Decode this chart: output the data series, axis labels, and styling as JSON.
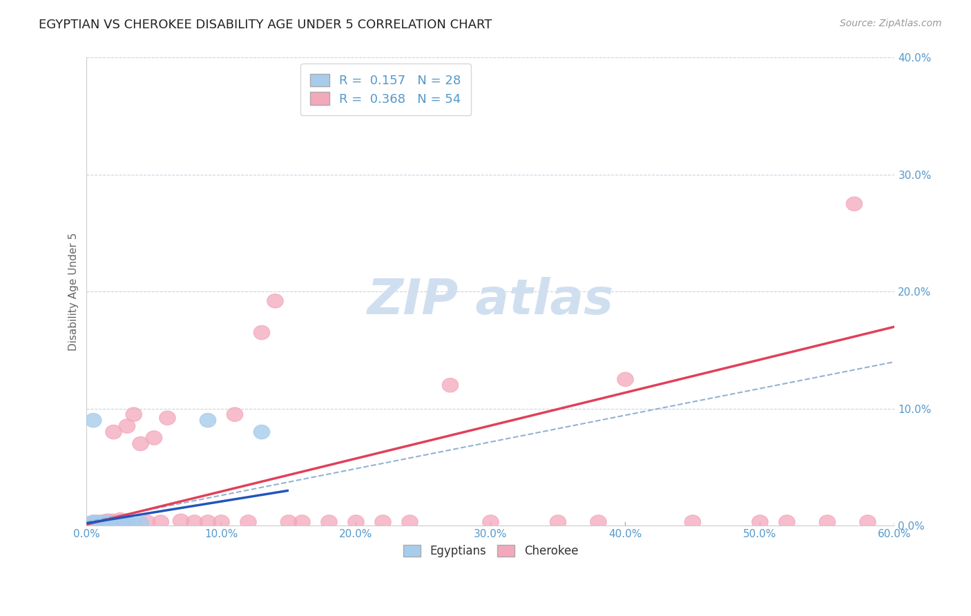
{
  "title": "EGYPTIAN VS CHEROKEE DISABILITY AGE UNDER 5 CORRELATION CHART",
  "source": "Source: ZipAtlas.com",
  "ylabel": "Disability Age Under 5",
  "xlim": [
    0,
    0.6
  ],
  "ylim": [
    0,
    0.4
  ],
  "xticks": [
    0.0,
    0.1,
    0.2,
    0.3,
    0.4,
    0.5,
    0.6
  ],
  "xtick_labels": [
    "0.0%",
    "10.0%",
    "20.0%",
    "30.0%",
    "40.0%",
    "50.0%",
    "60.0%"
  ],
  "yticks": [
    0.0,
    0.1,
    0.2,
    0.3,
    0.4
  ],
  "ytick_labels": [
    "0.0%",
    "10.0%",
    "20.0%",
    "30.0%",
    "40.0%"
  ],
  "legend_r1": "R =  0.157   N = 28",
  "legend_r2": "R =  0.368   N = 54",
  "egyptian_color": "#A8CCEC",
  "cherokee_color": "#F4A8BC",
  "egyptian_line_color": "#2255BB",
  "cherokee_line_color": "#E0405A",
  "dashed_line_color": "#88AACC",
  "background_color": "#FFFFFF",
  "grid_color": "#C8D4E0",
  "tick_label_color": "#5599CC",
  "watermark_color": "#D0DFF0",
  "cherokee_line_start_y": 0.001,
  "cherokee_line_end_y": 0.17,
  "dashed_line_start_y": 0.003,
  "dashed_line_end_y": 0.14,
  "egyptian_line_start_y": 0.002,
  "egyptian_line_end_y": 0.03,
  "egyptian_line_end_x": 0.15,
  "eg_x": [
    0.003,
    0.003,
    0.004,
    0.005,
    0.006,
    0.007,
    0.008,
    0.009,
    0.01,
    0.011,
    0.012,
    0.012,
    0.013,
    0.014,
    0.015,
    0.016,
    0.017,
    0.019,
    0.02,
    0.022,
    0.025,
    0.028,
    0.03,
    0.035,
    0.04,
    0.005,
    0.13,
    0.09
  ],
  "eg_y": [
    0.001,
    0.002,
    0.001,
    0.002,
    0.003,
    0.001,
    0.002,
    0.001,
    0.002,
    0.001,
    0.003,
    0.001,
    0.002,
    0.001,
    0.003,
    0.001,
    0.002,
    0.001,
    0.002,
    0.001,
    0.001,
    0.002,
    0.003,
    0.001,
    0.002,
    0.09,
    0.08,
    0.09
  ],
  "ch_x": [
    0.002,
    0.003,
    0.004,
    0.005,
    0.006,
    0.007,
    0.008,
    0.009,
    0.01,
    0.011,
    0.012,
    0.013,
    0.014,
    0.015,
    0.016,
    0.017,
    0.018,
    0.019,
    0.02,
    0.022,
    0.025,
    0.028,
    0.03,
    0.035,
    0.04,
    0.045,
    0.05,
    0.055,
    0.06,
    0.07,
    0.08,
    0.09,
    0.1,
    0.11,
    0.12,
    0.13,
    0.14,
    0.15,
    0.16,
    0.18,
    0.2,
    0.22,
    0.24,
    0.27,
    0.3,
    0.35,
    0.38,
    0.4,
    0.45,
    0.5,
    0.52,
    0.55,
    0.57,
    0.58
  ],
  "ch_y": [
    0.001,
    0.002,
    0.001,
    0.003,
    0.002,
    0.001,
    0.003,
    0.002,
    0.001,
    0.003,
    0.002,
    0.003,
    0.002,
    0.004,
    0.002,
    0.003,
    0.002,
    0.004,
    0.08,
    0.003,
    0.005,
    0.003,
    0.085,
    0.095,
    0.07,
    0.003,
    0.075,
    0.003,
    0.092,
    0.004,
    0.003,
    0.003,
    0.003,
    0.095,
    0.003,
    0.165,
    0.192,
    0.003,
    0.003,
    0.003,
    0.003,
    0.003,
    0.003,
    0.12,
    0.003,
    0.003,
    0.003,
    0.125,
    0.003,
    0.003,
    0.003,
    0.003,
    0.275,
    0.003
  ]
}
